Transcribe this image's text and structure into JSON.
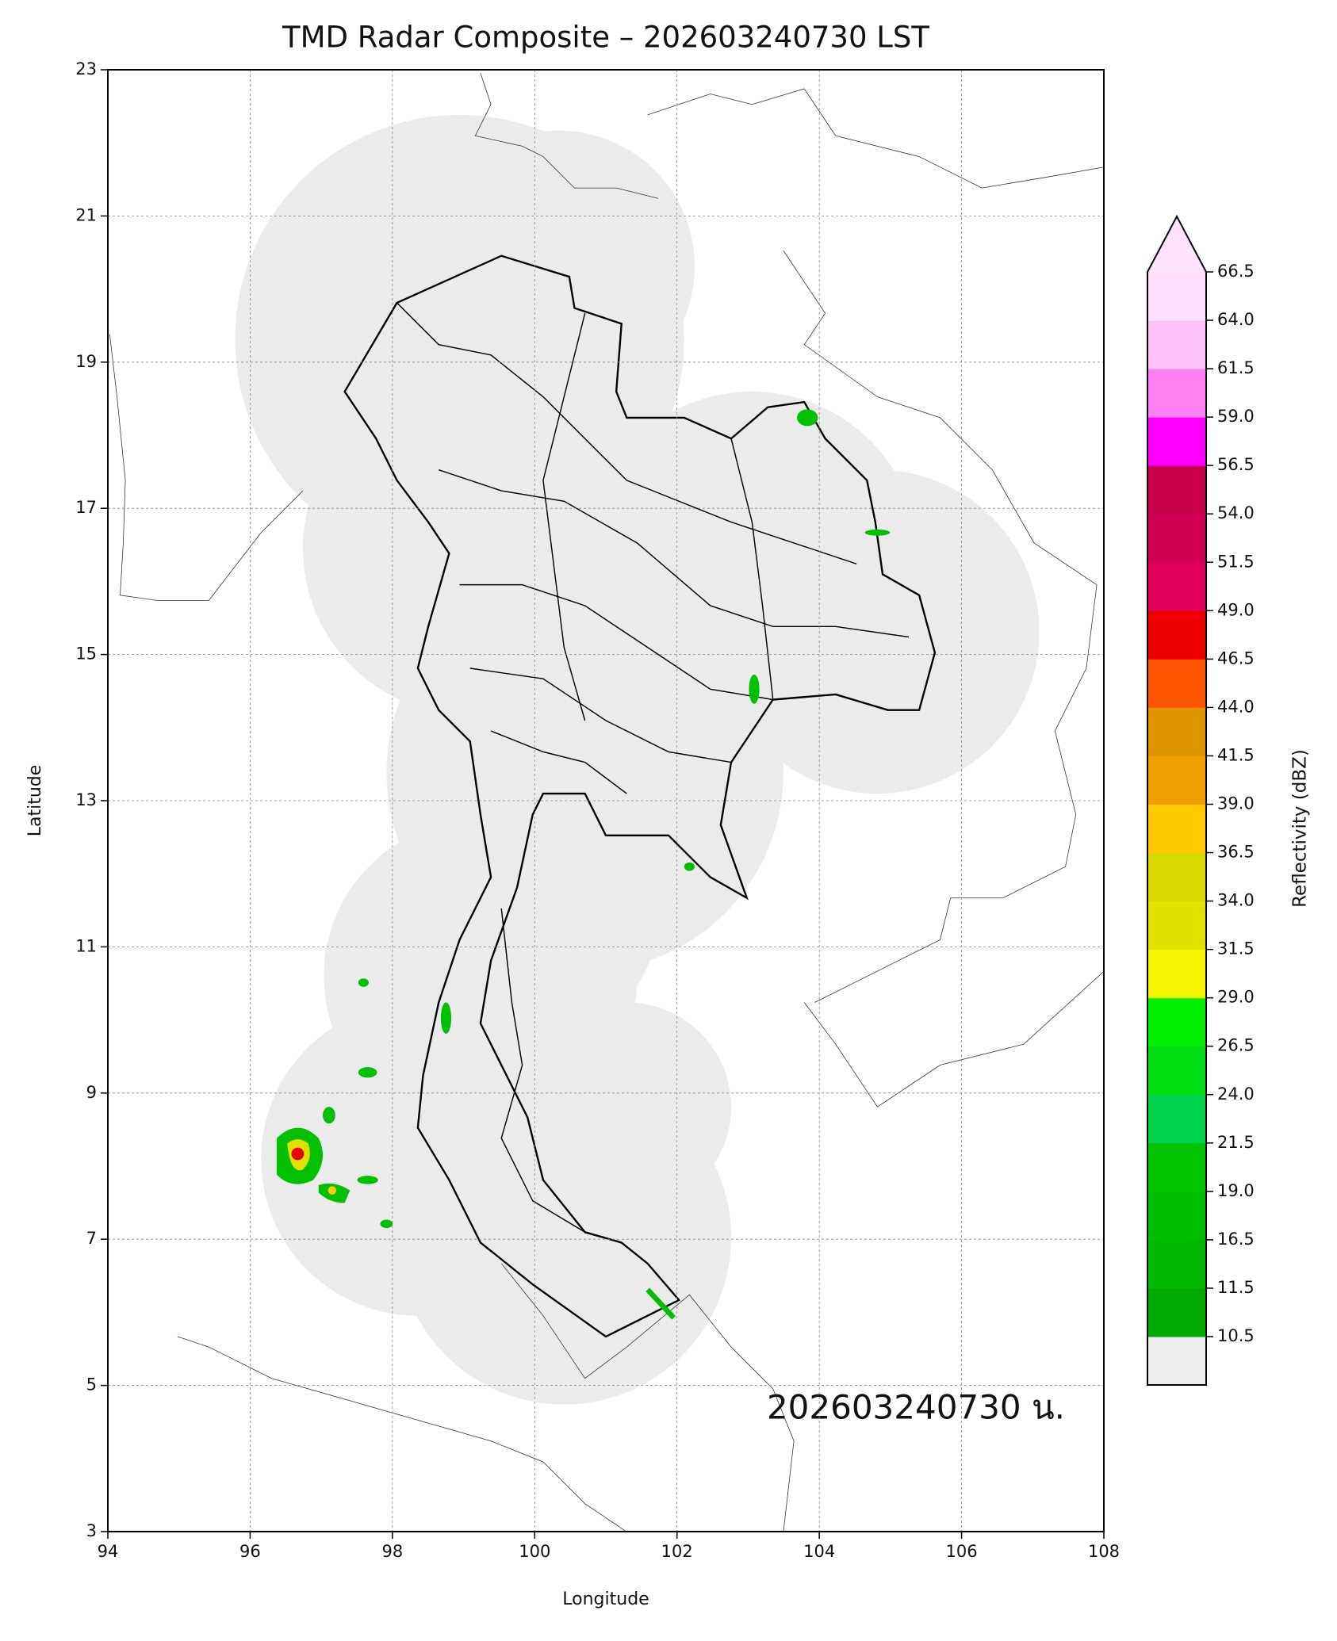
{
  "chart_data": {
    "type": "map",
    "title": "TMD Radar Composite – 202603240730 LST",
    "x_label": "Longitude",
    "y_label": "Latitude",
    "xlim": [
      94,
      108
    ],
    "ylim": [
      3,
      23
    ],
    "xticks": [
      94,
      96,
      98,
      100,
      102,
      104,
      106,
      108
    ],
    "yticks": [
      3,
      5,
      7,
      9,
      11,
      13,
      15,
      17,
      19,
      21,
      23
    ],
    "grid": true,
    "annotation": "202603240730 น.",
    "colorbar": {
      "label": "Reflectivity (dBZ)",
      "ticks": [
        10.5,
        11.5,
        16.5,
        {
          "value": 19,
          "label": "19.0"
        },
        21.5,
        {
          "value": 24,
          "label": "24.0"
        },
        26.5,
        {
          "value": 29,
          "label": "29.0"
        },
        31.5,
        {
          "value": 34,
          "label": "34.0"
        },
        36.5,
        {
          "value": 39,
          "label": "39.0"
        },
        41.5,
        {
          "value": 44,
          "label": "44.0"
        },
        46.5,
        {
          "value": 49,
          "label": "49.0"
        },
        51.5,
        {
          "value": 54,
          "label": "54.0"
        },
        56.5,
        {
          "value": 59,
          "label": "59.0"
        },
        61.5,
        {
          "value": 64,
          "label": "64.0"
        },
        66.5
      ],
      "colors": [
        "#00aa00",
        "#00b800",
        "#00bf00",
        "#00c400",
        "#00d24a",
        "#00dd12",
        "#00f000",
        "#f5f500",
        "#e2e200",
        "#d8d800",
        "#ffc800",
        "#f0a000",
        "#e09600",
        "#ff5500",
        "#ee0000",
        "#e2005c",
        "#d20052",
        "#c8004a",
        "#ff00ff",
        "#ff80f2",
        "#ffc2f8",
        "#ffdcfa"
      ],
      "over_color": "#ffe2fc",
      "under_color": "#ececec"
    }
  }
}
